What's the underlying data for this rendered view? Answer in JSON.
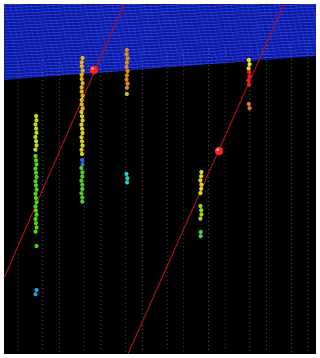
{
  "colors": {
    "background": "#000000",
    "page": "#ffffff",
    "surface": "#0c1aa3",
    "surface_mesh": "#3f57ff",
    "string_dots": "#7b7b7b",
    "track": "#a0141c",
    "vertex": "#ff1e1e"
  },
  "strings": {
    "count": 15,
    "style": "dotted vertical strings of optical modules"
  },
  "tracks": {
    "count": 2,
    "vertex_markers": 2
  },
  "hit_clusters": [
    {
      "name": "string-2-hits",
      "colors": [
        "#bcd91c",
        "#4fd21a",
        "#2a9ad8"
      ]
    },
    {
      "name": "string-4-hits",
      "colors": [
        "#e9b413",
        "#d6d31a",
        "#57c82b",
        "#2a6ae0"
      ]
    },
    {
      "name": "string-6-hits",
      "colors": [
        "#dc8a1e",
        "#c8c51b",
        "#1fd0b8"
      ]
    },
    {
      "name": "string-10-hits",
      "colors": [
        "#e8d41a",
        "#9fd21c",
        "#3fd24a"
      ]
    },
    {
      "name": "string-12-hits",
      "colors": [
        "#ece21a",
        "#ee4d1e",
        "#ff1a1a",
        "#d8752a"
      ]
    }
  ]
}
